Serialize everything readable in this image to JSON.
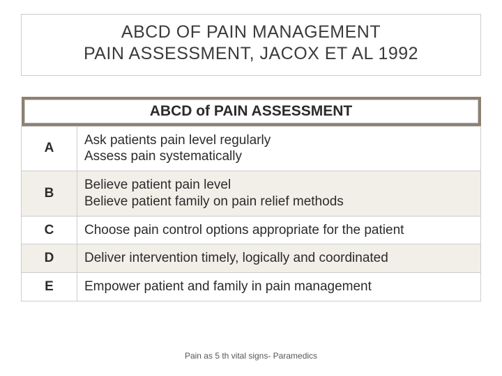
{
  "title": {
    "line1": "ABCD OF PAIN MANAGEMENT",
    "line2": "PAIN ASSESSMENT, JACOX ET AL 1992"
  },
  "table": {
    "header": "ABCD of PAIN ASSESSMENT",
    "header_bg": "#8c8171",
    "header_inner_bg": "#ffffff",
    "border_color": "#cccccc",
    "alt_row_bg": "#f2efe9",
    "rows": [
      {
        "letter": "A",
        "text": "Ask patients pain level regularly\nAssess pain systematically",
        "alt": false
      },
      {
        "letter": "B",
        "text": "Believe patient pain level\nBelieve patient family on pain relief methods",
        "alt": true
      },
      {
        "letter": "C",
        "text": "Choose pain control options appropriate for the patient",
        "alt": false
      },
      {
        "letter": "D",
        "text": "Deliver intervention timely, logically and coordinated",
        "alt": true
      },
      {
        "letter": "E",
        "text": "Empower patient  and family in pain management",
        "alt": false
      }
    ]
  },
  "footer": "Pain as 5 th vital signs- Paramedics",
  "colors": {
    "text": "#2b2b2b",
    "title_text": "#3b3b3b",
    "footer_text": "#555555",
    "background": "#ffffff"
  },
  "fonts": {
    "title_size": 25,
    "header_size": 21,
    "cell_size": 19,
    "footer_size": 12
  }
}
